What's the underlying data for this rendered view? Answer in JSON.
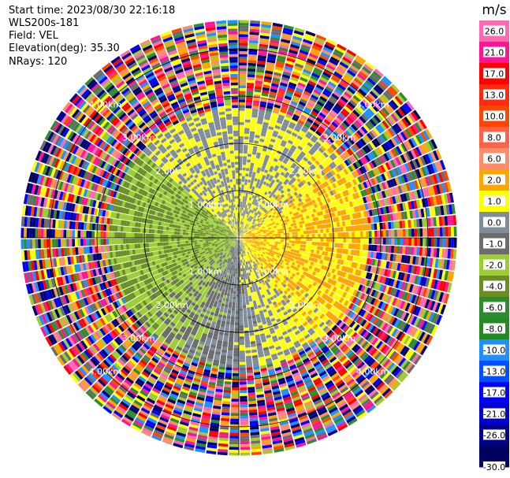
{
  "header": {
    "start_time": "Start time: 2023/08/30 22:16:18",
    "instrument": "WLS200s-181",
    "field": "Field: VEL",
    "elevation": "Elevation(deg): 35.30",
    "nrays": "NRays: 120"
  },
  "chart_data": {
    "type": "heatmap",
    "projection": "polar",
    "title": "",
    "rings_km": [
      1,
      2,
      3,
      4
    ],
    "ring_labels": [
      "1.00km",
      "2.00km",
      "3.00km",
      "4.00km"
    ],
    "max_range_km": 4.6,
    "nrays": 120,
    "colorbar": {
      "unit": "m/s",
      "tick_labels": [
        "26.0",
        "21.0",
        "17.0",
        "13.0",
        "10.0",
        "8.0",
        "6.0",
        "2.0",
        "1.0",
        "0.0",
        "-1.0",
        "-2.0",
        "-4.0",
        "-6.0",
        "-8.0",
        "-10.0",
        "-13.0",
        "-17.0",
        "-21.0",
        "-26.0",
        "-30.0"
      ],
      "bands": [
        {
          "lo": 26,
          "hi": 30,
          "color": "#ff69b4"
        },
        {
          "lo": 21,
          "hi": 26,
          "color": "#ff1493"
        },
        {
          "lo": 17,
          "hi": 21,
          "color": "#ff0000"
        },
        {
          "lo": 13,
          "hi": 17,
          "color": "#ff2a10"
        },
        {
          "lo": 10,
          "hi": 13,
          "color": "#ff4500"
        },
        {
          "lo": 8,
          "hi": 10,
          "color": "#ff6347"
        },
        {
          "lo": 6,
          "hi": 8,
          "color": "#ff8c69"
        },
        {
          "lo": 2,
          "hi": 6,
          "color": "#ffa500"
        },
        {
          "lo": 1,
          "hi": 2,
          "color": "#ffff00"
        },
        {
          "lo": 0,
          "hi": 1,
          "color": "#7f8c9a"
        },
        {
          "lo": -1,
          "hi": 0,
          "color": "#6b6b6b"
        },
        {
          "lo": -2,
          "hi": -1,
          "color": "#9acd32"
        },
        {
          "lo": -4,
          "hi": -2,
          "color": "#6b8e23"
        },
        {
          "lo": -6,
          "hi": -4,
          "color": "#2e8b2e"
        },
        {
          "lo": -8,
          "hi": -6,
          "color": "#228b22"
        },
        {
          "lo": -10,
          "hi": -8,
          "color": "#1e90ff"
        },
        {
          "lo": -13,
          "hi": -10,
          "color": "#0050ff"
        },
        {
          "lo": -17,
          "hi": -13,
          "color": "#0000ff"
        },
        {
          "lo": -21,
          "hi": -17,
          "color": "#0000cd"
        },
        {
          "lo": -26,
          "hi": -21,
          "color": "#00008b"
        },
        {
          "lo": -30,
          "hi": -26,
          "color": "#000060"
        }
      ]
    }
  }
}
